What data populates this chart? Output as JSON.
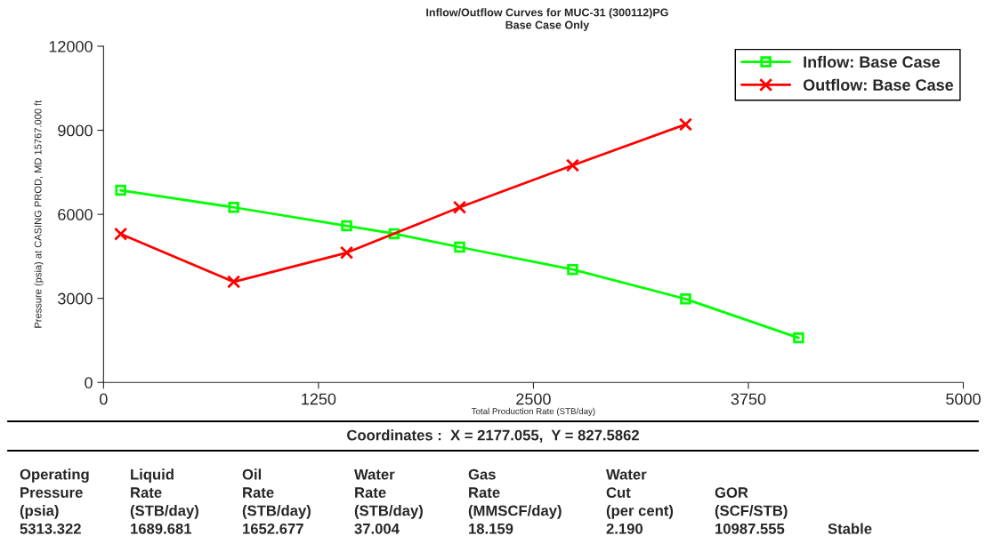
{
  "chart_data": {
    "type": "line",
    "title": "Inflow/Outflow Curves for MUC-31 (300112)PG",
    "subtitle": "Base Case Only",
    "xlabel": "Total Production Rate (STB/day)",
    "ylabel": "Pressure (psia) at CASING PROD, MD 15767.000 ft",
    "xlim": [
      0,
      5000
    ],
    "xticks": [
      0,
      1250,
      2500,
      3750,
      5000
    ],
    "ylim": [
      0,
      12000
    ],
    "yticks": [
      0,
      3000,
      6000,
      9000,
      12000
    ],
    "grid": false,
    "legend": "top right",
    "series": [
      {
        "name": "Inflow: Base Case",
        "color": "#00ff00",
        "marker": "square",
        "x": [
          100,
          757,
          1414,
          1690,
          2071,
          2728,
          3385,
          4042
        ],
        "values": [
          6860,
          6250,
          5590,
          5310,
          4830,
          4030,
          2980,
          1590
        ]
      },
      {
        "name": "Outflow: Base Case",
        "color": "#ff0000",
        "marker": "cross",
        "x": [
          100,
          757,
          1414,
          2071,
          2728,
          3385
        ],
        "values": [
          5300,
          3590,
          4630,
          6250,
          7750,
          9210
        ]
      }
    ],
    "annotations": [
      "Coordinates :  X = 2177.055,  Y = 827.5862",
      "Operating\nPressure\n(psia)\n5313.322",
      "Liquid\nRate\n(STB/day)\n1689.681",
      "Oil\nRate\n(STB/day)\n1652.677",
      "Water\nRate\n(STB/day)\n37.004",
      "Gas\nRate\n(MMSCF/day)\n18.159",
      "Water\nCut\n(per cent)\n2.190",
      "GOR\n(SCF/STB)\n10987.555",
      "Stable"
    ]
  }
}
